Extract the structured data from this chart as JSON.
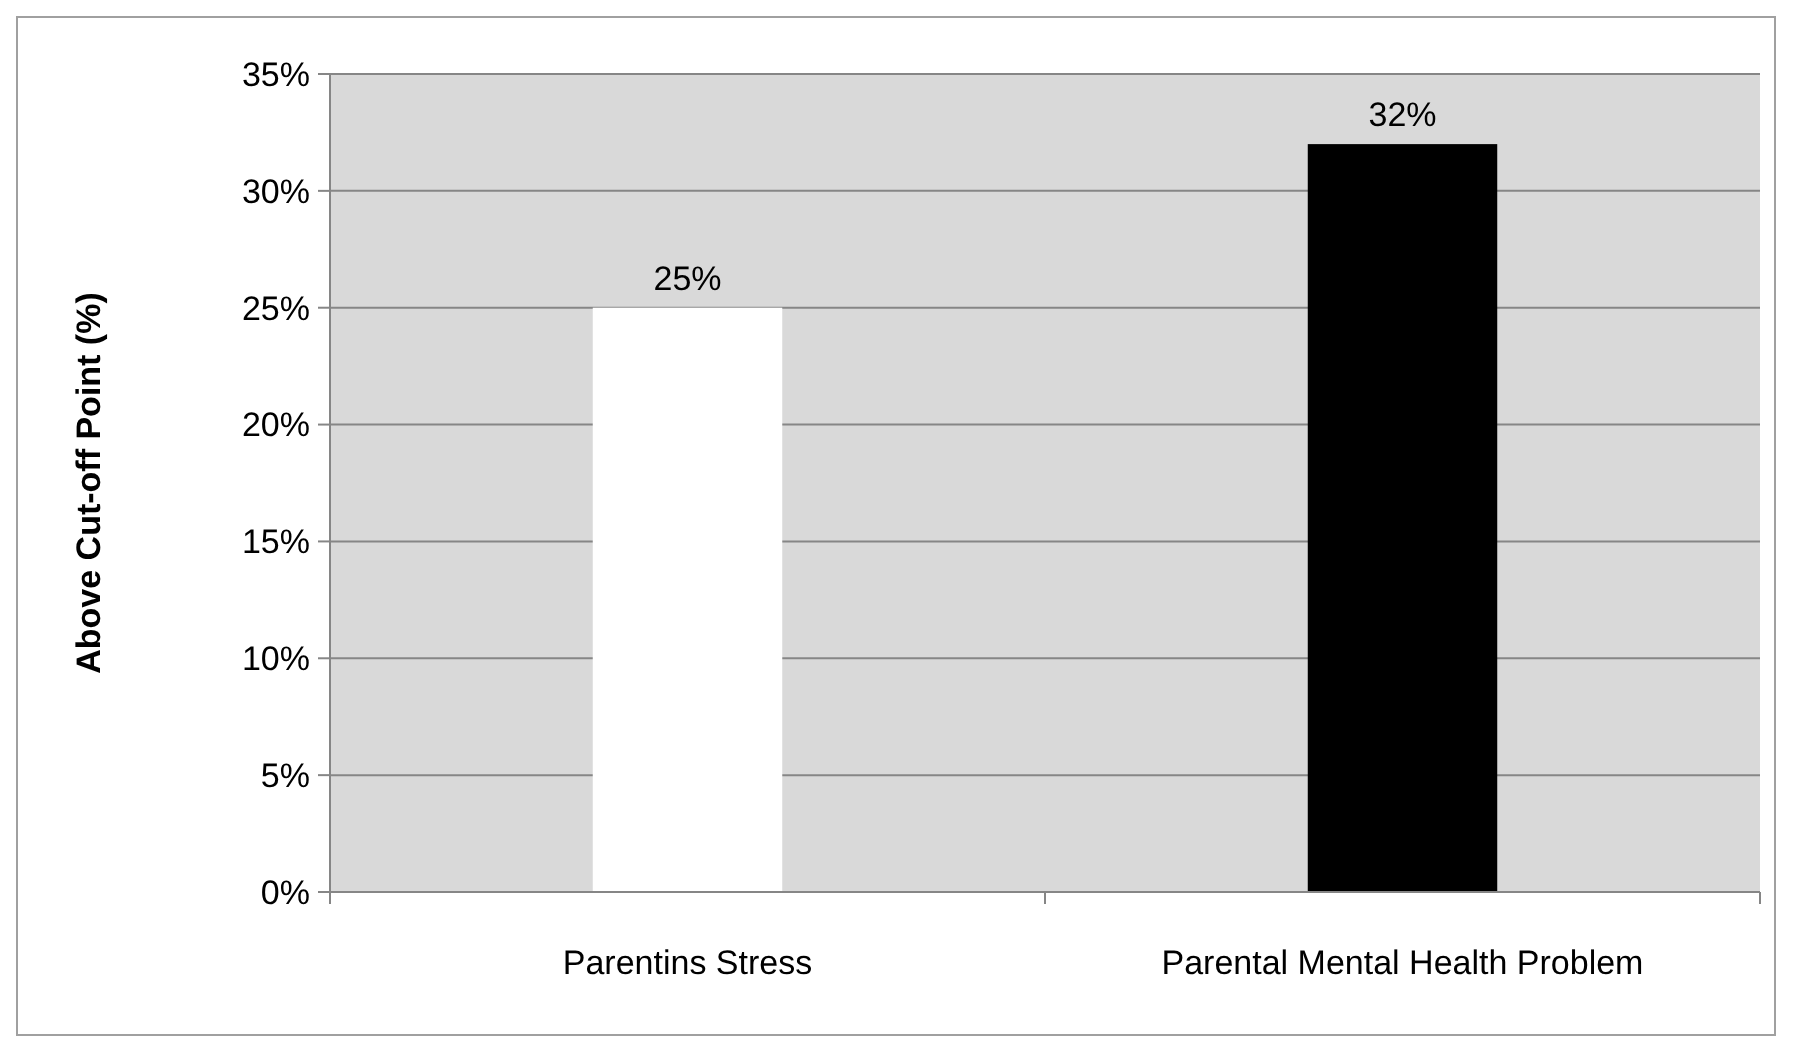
{
  "chart_data": {
    "type": "bar",
    "ylabel": "Above Cut-off Point (%)",
    "categories": [
      "Parentins Stress",
      "Parental Mental Health Problem"
    ],
    "values": [
      25,
      32
    ],
    "colors": [
      "#ffffff",
      "#000000"
    ],
    "value_labels": [
      "25%",
      "32%"
    ],
    "ylim": [
      0,
      35
    ],
    "yticks": [
      {
        "value": 0,
        "label": "0%"
      },
      {
        "value": 5,
        "label": "5%"
      },
      {
        "value": 10,
        "label": "10%"
      },
      {
        "value": 15,
        "label": "15%"
      },
      {
        "value": 20,
        "label": "20%"
      },
      {
        "value": 25,
        "label": "25%"
      },
      {
        "value": 30,
        "label": "30%"
      },
      {
        "value": 35,
        "label": "35%"
      }
    ],
    "grid": "y"
  }
}
